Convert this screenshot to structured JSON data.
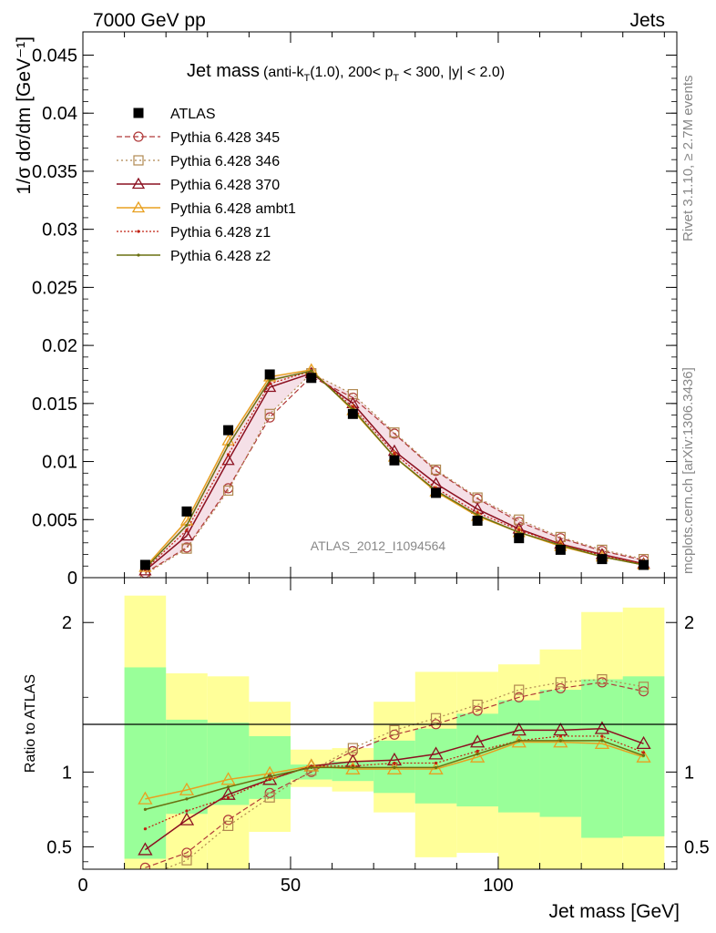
{
  "header": {
    "left": "7000 GeV pp",
    "right": "Jets"
  },
  "side": {
    "rivet": "Rivet 3.1.10, ≥ 2.7M events",
    "mcplots": "mcplots.cern.ch [arXiv:1306.3436]"
  },
  "watermark": "ATLAS_2012_I1094564",
  "colors": {
    "data": "#000000",
    "p345": "#b03a3a",
    "p346": "#b08850",
    "p370": "#8b1020",
    "ambt1": "#e8a020",
    "z1": "#c02010",
    "z2": "#6a7010",
    "band_green": "#99ff99",
    "band_yellow": "#ffff99"
  },
  "chart_data": [
    {
      "type": "line",
      "title_main": "Jet mass",
      "title_sub": "(anti-k",
      "title_sub_T": "T",
      "title_sub2": "(1.0), 200< p",
      "title_sub_T2": "T",
      "title_sub3": " < 300, |y| < 2.0)",
      "ylabel": "1/σ dσ/dm [GeV⁻¹]",
      "xlim": [
        0,
        143
      ],
      "ylim": [
        0,
        0.047
      ],
      "yticks": [
        0,
        0.005,
        0.01,
        0.015,
        0.02,
        0.025,
        0.03,
        0.035,
        0.04,
        0.045
      ],
      "yticklabels": [
        "0",
        "0.005",
        "0.01",
        "0.015",
        "0.02",
        "0.025",
        "0.03",
        "0.035",
        "0.04",
        "0.045"
      ],
      "x": [
        15,
        25,
        35,
        45,
        55,
        65,
        75,
        85,
        95,
        105,
        115,
        125,
        135
      ],
      "legend": [
        "ATLAS",
        "Pythia 6.428 345",
        "Pythia 6.428 346",
        "Pythia 6.428 370",
        "Pythia 6.428 ambt1",
        "Pythia 6.428 z1",
        "Pythia 6.428 z2"
      ],
      "series": [
        {
          "name": "ATLAS",
          "values": [
            0.0011,
            0.0057,
            0.0127,
            0.0175,
            0.0172,
            0.0141,
            0.0101,
            0.0073,
            0.0049,
            0.0034,
            0.0024,
            0.0016,
            0.0011
          ]
        },
        {
          "name": "Pythia 6.428 345",
          "values": [
            0.0004,
            0.0026,
            0.0077,
            0.0138,
            0.0173,
            0.0155,
            0.0124,
            0.0092,
            0.0068,
            0.0048,
            0.0034,
            0.0023,
            0.0015
          ]
        },
        {
          "name": "Pythia 6.428 346",
          "values": [
            0.0003,
            0.0025,
            0.0075,
            0.0141,
            0.0176,
            0.0158,
            0.0125,
            0.0093,
            0.0069,
            0.005,
            0.0035,
            0.0024,
            0.0016
          ]
        },
        {
          "name": "Pythia 6.428 370",
          "values": [
            0.0006,
            0.0036,
            0.0101,
            0.0164,
            0.0176,
            0.015,
            0.0109,
            0.0081,
            0.0059,
            0.0042,
            0.0029,
            0.002,
            0.0012
          ]
        },
        {
          "name": "Pythia 6.428 ambt1",
          "values": [
            0.0009,
            0.0049,
            0.0118,
            0.0173,
            0.0179,
            0.0144,
            0.0104,
            0.0074,
            0.0053,
            0.0039,
            0.0027,
            0.0018,
            0.0011
          ]
        },
        {
          "name": "Pythia 6.428 z1",
          "values": [
            0.0007,
            0.0041,
            0.0106,
            0.0167,
            0.0178,
            0.0147,
            0.0107,
            0.0077,
            0.0056,
            0.0041,
            0.0029,
            0.0019,
            0.0012
          ]
        },
        {
          "name": "Pythia 6.428 z2",
          "values": [
            0.0008,
            0.0045,
            0.0114,
            0.017,
            0.0178,
            0.0145,
            0.0104,
            0.0075,
            0.0054,
            0.0039,
            0.0028,
            0.0018,
            0.0011
          ]
        }
      ]
    },
    {
      "type": "line",
      "ylabel": "Ratio to ATLAS",
      "xlabel": "Jet mass [GeV]",
      "xlim": [
        0,
        143
      ],
      "ylim": [
        0.35,
        2.3
      ],
      "xticks": [
        0,
        50,
        100
      ],
      "xticklabels": [
        "0",
        "50",
        "100"
      ],
      "yticks": [
        0.5,
        1,
        2
      ],
      "yticklabels": [
        "0.5",
        "1",
        "2"
      ],
      "bins": [
        [
          10,
          20
        ],
        [
          20,
          30
        ],
        [
          30,
          40
        ],
        [
          40,
          50
        ],
        [
          50,
          60
        ],
        [
          60,
          70
        ],
        [
          70,
          80
        ],
        [
          80,
          90
        ],
        [
          90,
          100
        ],
        [
          100,
          110
        ],
        [
          110,
          120
        ],
        [
          120,
          130
        ],
        [
          130,
          140
        ]
      ],
      "band_green": [
        [
          0.42,
          1.7
        ],
        [
          0.72,
          1.35
        ],
        [
          0.78,
          1.33
        ],
        [
          0.82,
          1.24
        ],
        [
          0.95,
          1.05
        ],
        [
          0.94,
          1.07
        ],
        [
          0.86,
          1.21
        ],
        [
          0.79,
          1.29
        ],
        [
          0.77,
          1.39
        ],
        [
          0.73,
          1.48
        ],
        [
          0.7,
          1.55
        ],
        [
          0.56,
          1.62
        ],
        [
          0.57,
          1.64
        ]
      ],
      "band_yellow": [
        [
          0.35,
          2.18
        ],
        [
          0.35,
          1.66
        ],
        [
          0.35,
          1.64
        ],
        [
          0.6,
          1.47
        ],
        [
          0.9,
          1.15
        ],
        [
          0.87,
          1.16
        ],
        [
          0.73,
          1.47
        ],
        [
          0.43,
          1.67
        ],
        [
          0.46,
          1.67
        ],
        [
          0.35,
          1.72
        ],
        [
          0.35,
          1.82
        ],
        [
          0.35,
          2.07
        ],
        [
          0.35,
          2.1
        ]
      ],
      "x": [
        15,
        25,
        35,
        45,
        55,
        65,
        75,
        85,
        95,
        105,
        115,
        125,
        135
      ],
      "series": [
        {
          "name": "Pythia 6.428 345",
          "values": [
            0.36,
            0.46,
            0.68,
            0.86,
            1.0,
            1.14,
            1.25,
            1.32,
            1.41,
            1.5,
            1.56,
            1.6,
            1.54
          ]
        },
        {
          "name": "Pythia 6.428 346",
          "values": [
            0.3,
            0.41,
            0.64,
            0.83,
            1.01,
            1.16,
            1.28,
            1.36,
            1.45,
            1.55,
            1.6,
            1.62,
            1.57
          ]
        },
        {
          "name": "Pythia 6.428 370",
          "values": [
            0.48,
            0.68,
            0.85,
            0.95,
            1.04,
            1.07,
            1.08,
            1.12,
            1.2,
            1.28,
            1.28,
            1.29,
            1.19
          ]
        },
        {
          "name": "Pythia 6.428 ambt1",
          "values": [
            0.82,
            0.88,
            0.95,
            0.99,
            1.04,
            1.02,
            1.02,
            1.02,
            1.1,
            1.2,
            1.2,
            1.19,
            1.1
          ]
        },
        {
          "name": "Pythia 6.428 z1",
          "values": [
            0.62,
            0.74,
            0.83,
            0.95,
            1.04,
            1.04,
            1.06,
            1.06,
            1.14,
            1.21,
            1.24,
            1.24,
            1.13
          ]
        },
        {
          "name": "Pythia 6.428 z2",
          "values": [
            0.75,
            0.82,
            0.9,
            0.97,
            1.03,
            1.03,
            1.03,
            1.03,
            1.12,
            1.21,
            1.21,
            1.21,
            1.11
          ]
        }
      ]
    }
  ]
}
